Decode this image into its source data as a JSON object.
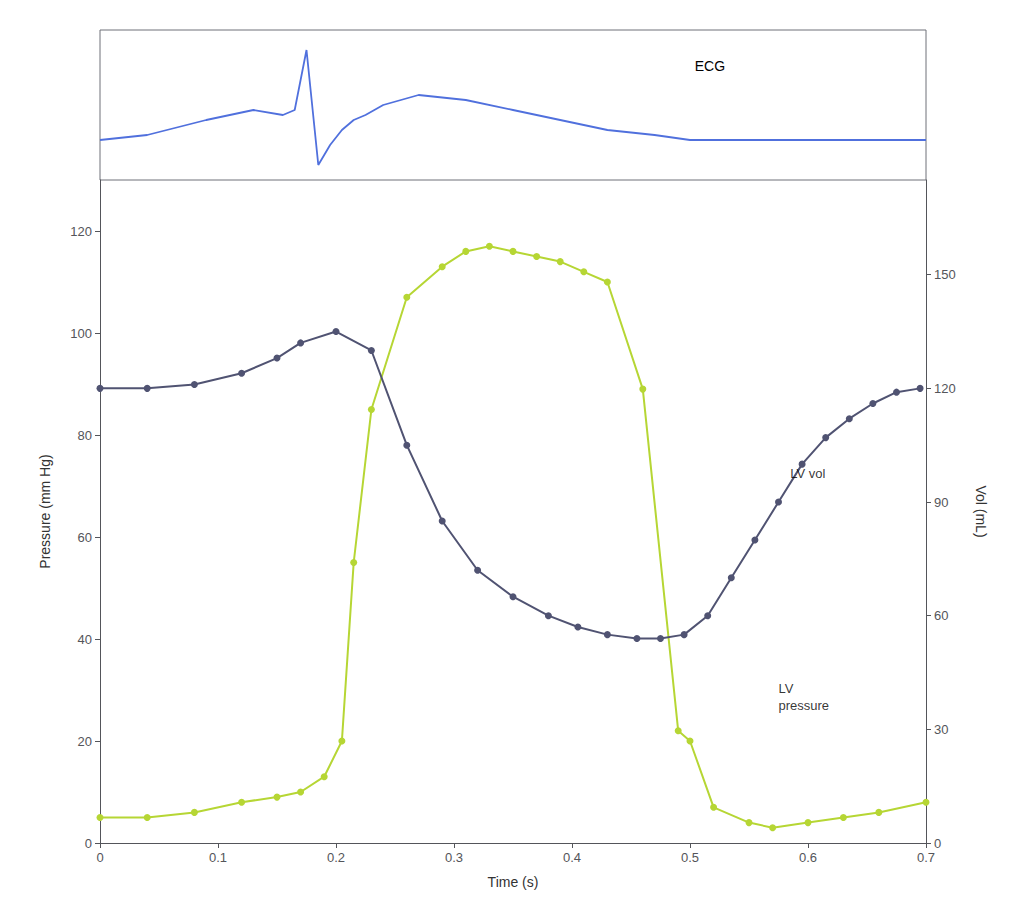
{
  "chart_data": [
    {
      "type": "line",
      "x": [
        0.0,
        0.04,
        0.09,
        0.13,
        0.155,
        0.165,
        0.175,
        0.185,
        0.195,
        0.205,
        0.215,
        0.225,
        0.24,
        0.27,
        0.31,
        0.35,
        0.39,
        0.43,
        0.47,
        0.5,
        0.52,
        0.7
      ],
      "values": [
        0.0,
        0.05,
        0.2,
        0.3,
        0.25,
        0.3,
        0.9,
        -0.25,
        -0.05,
        0.1,
        0.2,
        0.25,
        0.35,
        0.45,
        0.4,
        0.3,
        0.2,
        0.1,
        0.05,
        0.0,
        0.0,
        0.0
      ],
      "marker": "none",
      "xlim": [
        0,
        0.7
      ],
      "ylim": [
        -0.4,
        1.1
      ],
      "tick_labels": false,
      "grid": false,
      "annotations": [
        {
          "text": "ECG"
        }
      ]
    },
    {
      "type": "line",
      "xlabel": "Time (s)",
      "ylabel": "Pressure (mm Hg)",
      "y2label": "Vol (mL)",
      "xlim": [
        0,
        0.7
      ],
      "xticks": [
        0,
        0.1,
        0.2,
        0.3,
        0.4,
        0.5,
        0.6,
        0.7
      ],
      "ylim": [
        0,
        130
      ],
      "yticks": [
        0,
        20,
        40,
        60,
        80,
        100,
        120
      ],
      "y2lim": [
        0,
        175
      ],
      "y2ticks": [
        0,
        30,
        60,
        90,
        120,
        150
      ],
      "grid": false,
      "series": [
        {
          "x": [
            0.0,
            0.04,
            0.08,
            0.12,
            0.15,
            0.17,
            0.19,
            0.205,
            0.215,
            0.23,
            0.26,
            0.29,
            0.31,
            0.33,
            0.35,
            0.37,
            0.39,
            0.41,
            0.43,
            0.46,
            0.49,
            0.5,
            0.52,
            0.55,
            0.57,
            0.6,
            0.63,
            0.66,
            0.7
          ],
          "values": [
            5,
            5,
            6,
            8,
            9,
            10,
            13,
            20,
            55,
            85,
            107,
            113,
            116,
            117,
            116,
            115,
            114,
            112,
            110,
            89,
            22,
            20,
            7,
            4,
            3,
            4,
            5,
            6,
            8
          ],
          "marker": "circle"
        },
        {
          "x": [
            0.0,
            0.04,
            0.08,
            0.12,
            0.15,
            0.17,
            0.2,
            0.23,
            0.26,
            0.29,
            0.32,
            0.35,
            0.38,
            0.405,
            0.43,
            0.455,
            0.475,
            0.495,
            0.515,
            0.535,
            0.555,
            0.575,
            0.595,
            0.615,
            0.635,
            0.655,
            0.675,
            0.695
          ],
          "values": [
            120,
            120,
            121,
            124,
            128,
            132,
            135,
            130,
            105,
            85,
            72,
            65,
            60,
            57,
            55,
            54,
            54,
            55,
            60,
            70,
            80,
            90,
            100,
            107,
            112,
            116,
            119,
            120
          ],
          "marker": "circle",
          "axis": "y2"
        }
      ],
      "annotations": [
        {
          "text": "LV vol",
          "x": 0.585,
          "y": 90,
          "axis": "y2"
        },
        {
          "text": "LV\npressure",
          "x": 0.575,
          "y": 32,
          "axis": "y"
        }
      ]
    }
  ]
}
